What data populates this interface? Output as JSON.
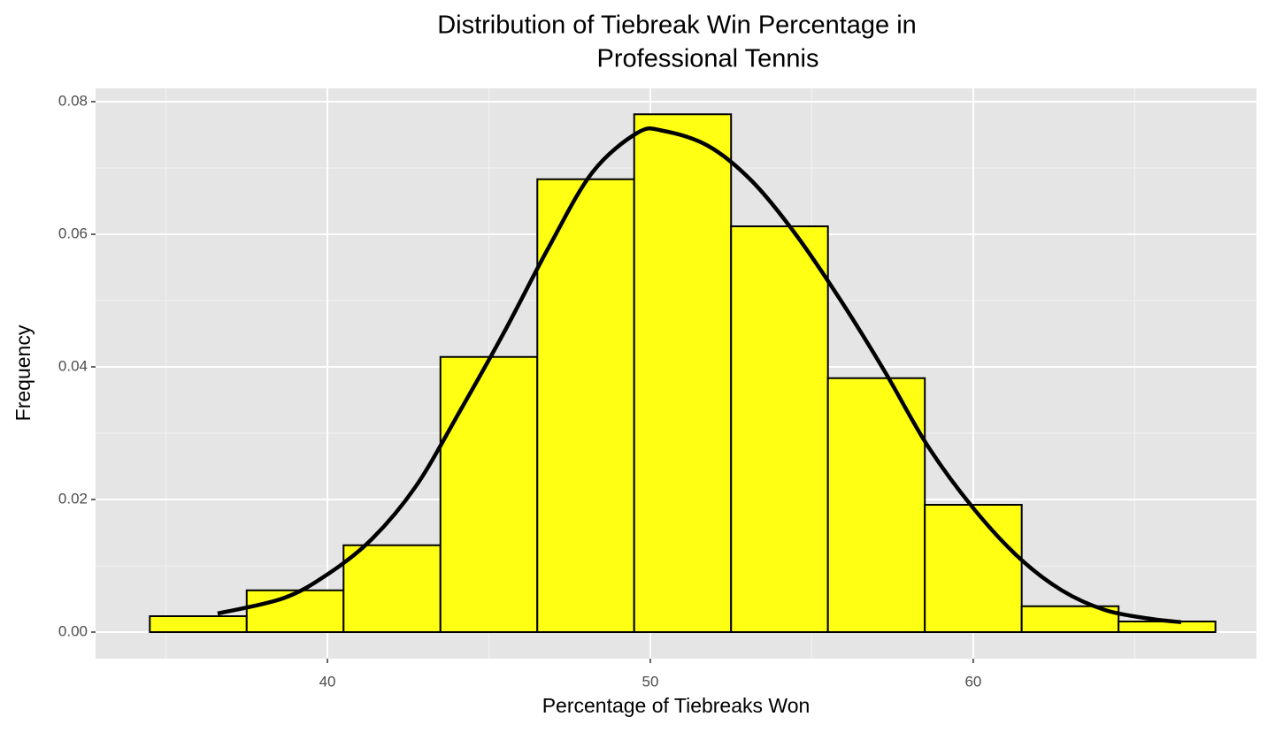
{
  "chart_data": {
    "type": "histogram",
    "title": [
      "Distribution of Tiebreak Win Percentage in",
      "Professional Tennis"
    ],
    "x_label": "Percentage of Tiebreaks Won",
    "y_label": "Frequency",
    "bins": [
      34.5,
      37.5,
      40.5,
      43.5,
      46.5,
      49.5,
      52.5,
      55.5,
      58.5,
      61.5,
      64.5,
      67.5
    ],
    "values": [
      0.0024,
      0.0063,
      0.0131,
      0.0415,
      0.0683,
      0.0781,
      0.0612,
      0.0383,
      0.0192,
      0.0039,
      0.0016
    ],
    "color": "#ffff14",
    "edge_color": "#000000",
    "density": {
      "color": "#000000",
      "x": [
        36.6,
        38.63,
        40,
        41.37,
        42.74,
        44.1,
        45.48,
        46.85,
        48.2,
        49.6,
        50.4,
        51.8,
        53.15,
        54.5,
        55.9,
        57.26,
        58.6,
        60,
        61.4,
        62.74,
        64.1,
        65.5,
        66.44
      ],
      "values": [
        0.0028,
        0.0051,
        0.0087,
        0.014,
        0.022,
        0.0333,
        0.0453,
        0.058,
        0.0693,
        0.0753,
        0.0756,
        0.0733,
        0.068,
        0.06,
        0.05,
        0.0393,
        0.028,
        0.0187,
        0.0113,
        0.0063,
        0.0033,
        0.002,
        0.0015
      ]
    },
    "xlim": [
      32.82,
      68.77
    ],
    "ylim": [
      -0.004,
      0.082
    ],
    "xticks": [
      40,
      50,
      60
    ],
    "yticks": [
      {
        "value": 0,
        "label": "0.00"
      },
      0.02,
      0.04,
      0.06,
      0.08
    ],
    "xminor": [
      35,
      45,
      55,
      65
    ],
    "yminor": [
      0.01,
      0.03,
      0.05,
      0.07
    ],
    "grid": true
  }
}
